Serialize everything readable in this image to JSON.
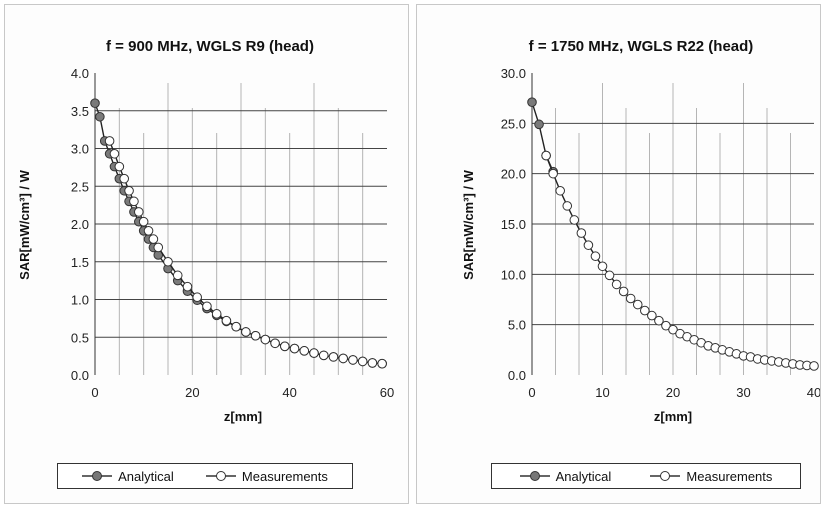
{
  "chart_data": [
    {
      "type": "line",
      "title": "f = 900 MHz, WGLS R9 (head)",
      "xlabel": "z[mm]",
      "ylabel": "SAR[mW/cm³] / W",
      "xlim": [
        0,
        60
      ],
      "ylim": [
        0,
        4.0
      ],
      "xticks": [
        "0",
        "20",
        "40",
        "60"
      ],
      "yticks": [
        "0.0",
        "0.5",
        "1.0",
        "1.5",
        "2.0",
        "2.5",
        "3.0",
        "3.5",
        "4.0"
      ],
      "grid": true,
      "legend": "bottom",
      "series": [
        {
          "name": "Analytical",
          "marker": "filled-circle",
          "color": "#555555",
          "x": [
            0,
            1,
            2,
            3,
            4,
            5,
            6,
            7,
            8,
            9,
            10,
            11,
            12,
            13,
            15,
            17,
            19,
            21,
            23,
            25,
            27,
            29,
            31,
            33,
            35,
            37,
            39,
            41,
            43,
            45,
            47,
            49,
            51,
            53,
            55,
            57,
            59
          ],
          "y": [
            3.6,
            3.42,
            3.1,
            2.93,
            2.76,
            2.6,
            2.44,
            2.3,
            2.16,
            2.03,
            1.91,
            1.8,
            1.69,
            1.59,
            1.41,
            1.25,
            1.11,
            0.99,
            0.88,
            0.79,
            0.71,
            0.64,
            0.57,
            0.52,
            0.47,
            0.42,
            0.38,
            0.35,
            0.32,
            0.29,
            0.26,
            0.24,
            0.22,
            0.2,
            0.18,
            0.16,
            0.15
          ]
        },
        {
          "name": "Measurements",
          "marker": "open-circle",
          "color": "#555555",
          "x": [
            3,
            4,
            5,
            6,
            7,
            8,
            9,
            10,
            11,
            12,
            13,
            15,
            17,
            19,
            21,
            23,
            25,
            27,
            29,
            31,
            33,
            35,
            37,
            39,
            41,
            43,
            45,
            47,
            49,
            51,
            53,
            55,
            57,
            59
          ],
          "y": [
            3.1,
            2.93,
            2.76,
            2.6,
            2.44,
            2.3,
            2.16,
            2.03,
            1.91,
            1.8,
            1.69,
            1.5,
            1.32,
            1.17,
            1.03,
            0.91,
            0.81,
            0.72,
            0.64,
            0.57,
            0.52,
            0.47,
            0.42,
            0.38,
            0.35,
            0.32,
            0.29,
            0.26,
            0.24,
            0.22,
            0.2,
            0.18,
            0.16,
            0.15
          ]
        }
      ]
    },
    {
      "type": "line",
      "title": "f = 1750 MHz, WGLS R22 (head)",
      "xlabel": "z[mm]",
      "ylabel": "SAR[mW/cm³] / W",
      "xlim": [
        0,
        40
      ],
      "ylim": [
        0,
        30.0
      ],
      "xticks": [
        "0",
        "10",
        "20",
        "30",
        "40"
      ],
      "yticks": [
        "0.0",
        "5.0",
        "10.0",
        "15.0",
        "20.0",
        "25.0",
        "30.0"
      ],
      "grid": true,
      "legend": "bottom",
      "series": [
        {
          "name": "Analytical",
          "marker": "filled-circle",
          "color": "#555555",
          "x": [
            0,
            1,
            2,
            3
          ],
          "y": [
            27.1,
            24.9,
            21.8,
            20.2
          ]
        },
        {
          "name": "Measurements",
          "marker": "open-circle",
          "color": "#555555",
          "x": [
            2,
            3,
            4,
            5,
            6,
            7,
            8,
            9,
            10,
            11,
            12,
            13,
            14,
            15,
            16,
            17,
            18,
            19,
            20,
            21,
            22,
            23,
            24,
            25,
            26,
            27,
            28,
            29,
            30,
            31,
            32,
            33,
            34,
            35,
            36,
            37,
            38,
            39,
            40
          ],
          "y": [
            21.8,
            20.0,
            18.3,
            16.8,
            15.4,
            14.1,
            12.9,
            11.8,
            10.8,
            9.9,
            9.0,
            8.3,
            7.6,
            7.0,
            6.4,
            5.9,
            5.4,
            4.9,
            4.5,
            4.1,
            3.8,
            3.5,
            3.2,
            2.9,
            2.7,
            2.5,
            2.3,
            2.1,
            1.9,
            1.8,
            1.6,
            1.5,
            1.4,
            1.3,
            1.2,
            1.1,
            1.0,
            0.95,
            0.9
          ]
        }
      ]
    }
  ]
}
